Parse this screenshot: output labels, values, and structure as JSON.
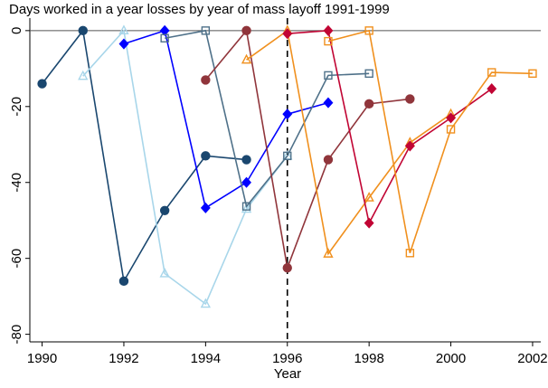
{
  "chart_data": {
    "type": "line",
    "title": "Days worked in a year losses by year of mass layoff 1991-1999",
    "x_label": "Year",
    "xlim": [
      1989.7,
      2002.2
    ],
    "ylim": [
      -82,
      3.3
    ],
    "xticks": [
      1990,
      1992,
      1994,
      1996,
      1998,
      2000,
      2002
    ],
    "yticks": [
      0,
      -20,
      -40,
      -60,
      -80
    ],
    "hline": 0,
    "vline": 1996,
    "series": [
      {
        "color": "#1a476f",
        "marker": "circle",
        "filled": true,
        "x": [
          1990,
          1991,
          1992,
          1993,
          1994,
          1995
        ],
        "values": [
          -14,
          0,
          -66,
          -47.4,
          -33,
          -34
        ]
      },
      {
        "color": "#a8d6ea",
        "marker": "triangle",
        "filled": false,
        "x": [
          1991,
          1992,
          1993,
          1994,
          1995,
          1996
        ],
        "values": [
          -12,
          0,
          -64,
          -72,
          -47,
          -33
        ]
      },
      {
        "color": "#0000ff",
        "marker": "diamond",
        "filled": true,
        "x": [
          1992,
          1993,
          1994,
          1995,
          1996,
          1997
        ],
        "values": [
          -3.5,
          0,
          -46.7,
          -40,
          -22,
          -19
        ]
      },
      {
        "color": "#4f7189",
        "marker": "square",
        "filled": false,
        "x": [
          1993,
          1994,
          1995,
          1996,
          1997,
          1998
        ],
        "values": [
          -2,
          0,
          -46.3,
          -33,
          -11.8,
          -11.3
        ]
      },
      {
        "color": "#90353b",
        "marker": "circle",
        "filled": true,
        "x": [
          1994,
          1995,
          1996,
          1997,
          1998,
          1999
        ],
        "values": [
          -13,
          0,
          -62.5,
          -34,
          -19.3,
          -18
        ]
      },
      {
        "color": "#f0901e",
        "marker": "triangle",
        "filled": false,
        "x": [
          1995,
          1996,
          1997,
          1998,
          1999,
          2000
        ],
        "values": [
          -7.7,
          0,
          -58.8,
          -44,
          -29.5,
          -22
        ]
      },
      {
        "color": "#c10534",
        "marker": "diamond",
        "filled": true,
        "x": [
          1996,
          1997,
          1998,
          1999,
          2000,
          2001
        ],
        "values": [
          -0.8,
          0,
          -50.7,
          -30.4,
          -23,
          -15.3
        ]
      },
      {
        "color": "#f0901e",
        "marker": "square",
        "filled": false,
        "x": [
          1997,
          1998,
          1999,
          2000,
          2001,
          2002
        ],
        "values": [
          -2.8,
          0,
          -58.6,
          -26,
          -11,
          -11.3
        ]
      }
    ]
  }
}
